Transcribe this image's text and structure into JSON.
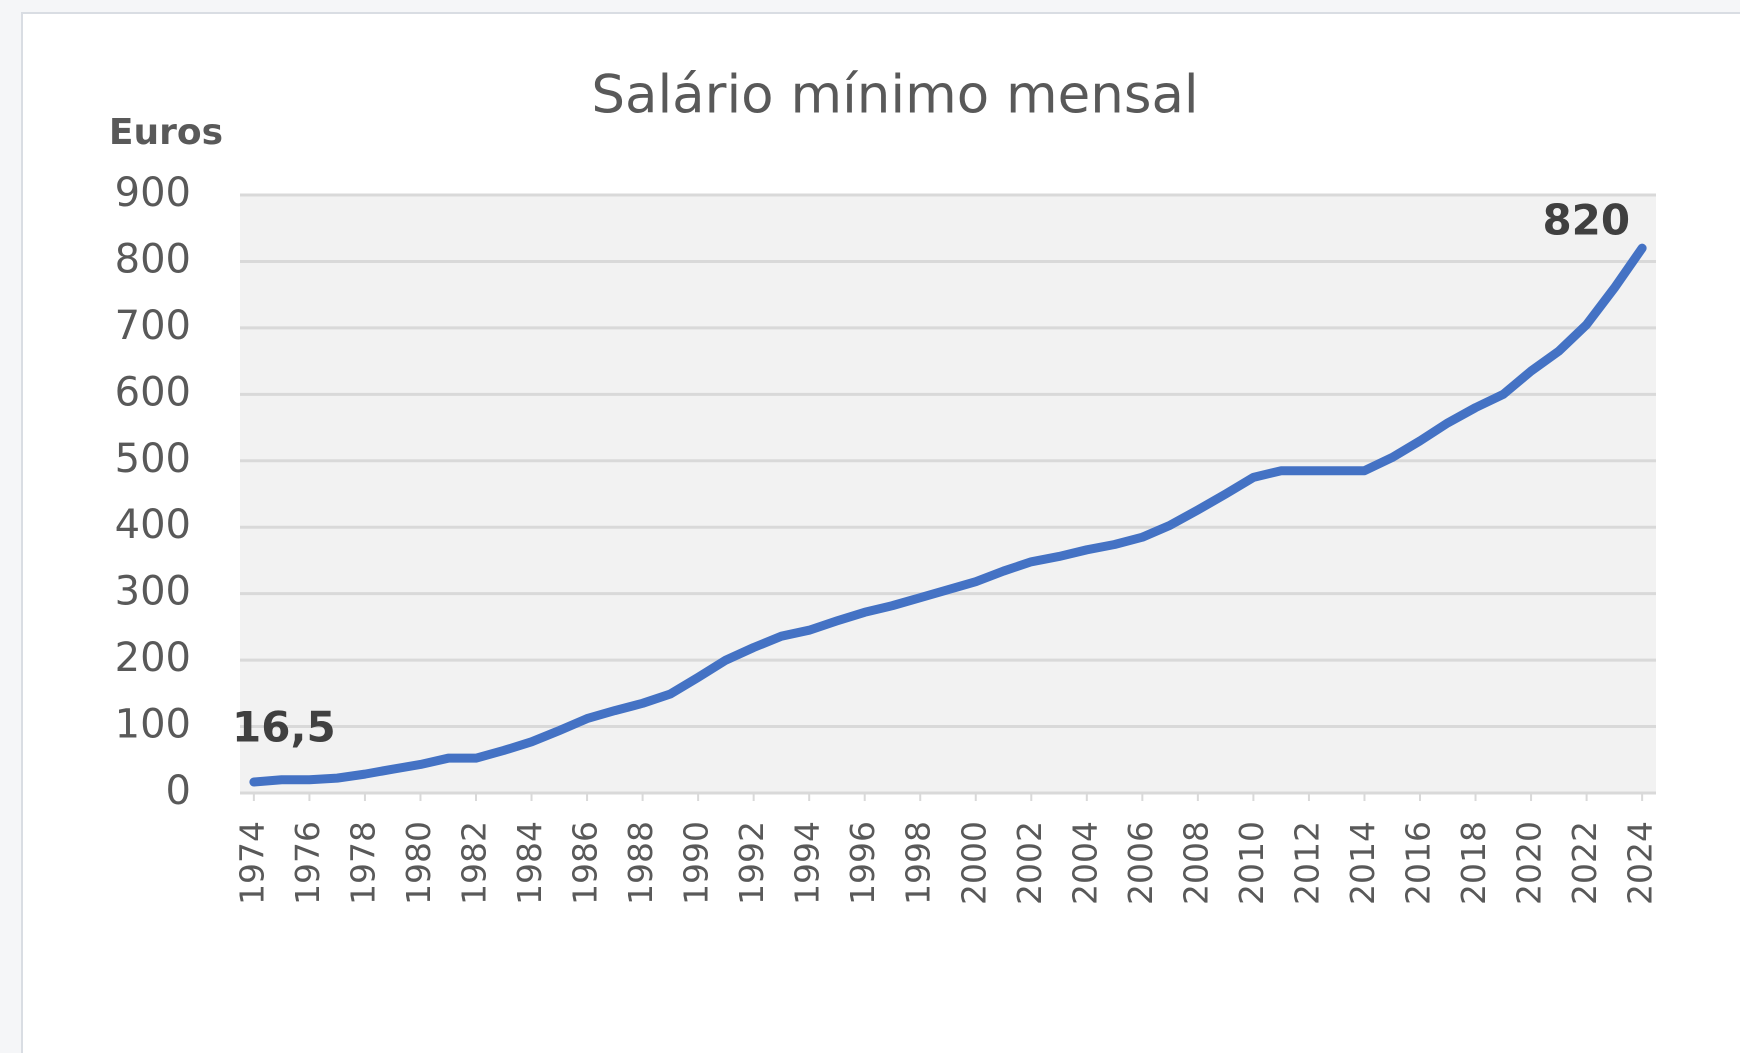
{
  "chart_data": {
    "type": "line",
    "title": "Salário mínimo mensal",
    "y_label": "Euros",
    "x": [
      1974,
      1975,
      1976,
      1977,
      1978,
      1979,
      1980,
      1981,
      1982,
      1983,
      1984,
      1985,
      1986,
      1987,
      1988,
      1989,
      1990,
      1991,
      1992,
      1993,
      1994,
      1995,
      1996,
      1997,
      1998,
      1999,
      2000,
      2001,
      2002,
      2003,
      2004,
      2005,
      2006,
      2007,
      2008,
      2009,
      2010,
      2011,
      2012,
      2013,
      2014,
      2015,
      2016,
      2017,
      2018,
      2019,
      2020,
      2021,
      2022,
      2023,
      2024
    ],
    "series": [
      {
        "name": "Salário mínimo mensal",
        "color": "#4472c4",
        "values": [
          16.5,
          19.95,
          19.95,
          22.4,
          28.4,
          35.9,
          42.9,
          52.4,
          52.4,
          64,
          77,
          94,
          112,
          124,
          135,
          149,
          174,
          200,
          219,
          236,
          245,
          259,
          272,
          282,
          294,
          306,
          318,
          334,
          348,
          356,
          366,
          374,
          385,
          403,
          426,
          450,
          475,
          485,
          485,
          485,
          485,
          505,
          530,
          557,
          580,
          600,
          635,
          665,
          705,
          760,
          820
        ],
        "value_labels": [
          "16,5",
          null,
          null,
          null,
          null,
          null,
          null,
          null,
          null,
          null,
          null,
          null,
          null,
          null,
          null,
          null,
          null,
          null,
          null,
          null,
          null,
          null,
          null,
          null,
          null,
          null,
          null,
          null,
          null,
          null,
          null,
          null,
          null,
          null,
          null,
          null,
          null,
          null,
          null,
          null,
          null,
          null,
          null,
          null,
          null,
          null,
          null,
          null,
          null,
          null,
          "820"
        ]
      }
    ],
    "xlim": [
      1973.5,
      2024.5
    ],
    "xticks": [
      1974,
      1976,
      1978,
      1980,
      1982,
      1984,
      1986,
      1988,
      1990,
      1992,
      1994,
      1996,
      1998,
      2000,
      2002,
      2004,
      2006,
      2008,
      2010,
      2012,
      2014,
      2016,
      2018,
      2020,
      2022,
      2024
    ],
    "ylim": [
      0,
      900
    ],
    "yticks": [
      0,
      100,
      200,
      300,
      400,
      500,
      600,
      700,
      800,
      900
    ],
    "grid": true
  }
}
